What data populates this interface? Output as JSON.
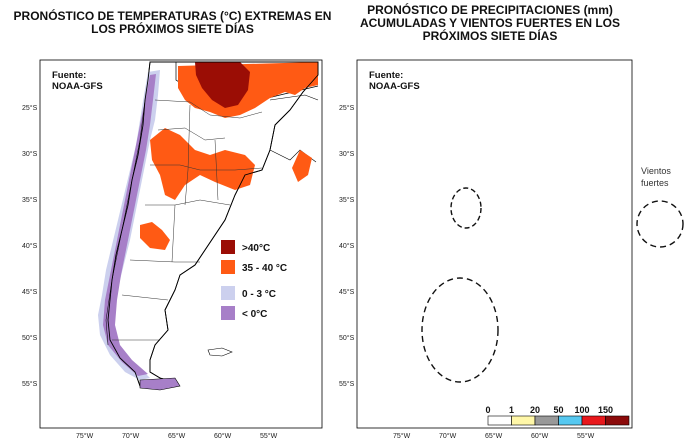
{
  "left_panel": {
    "title": "PRONÓSTICO DE TEMPERATURAS (°C) EXTREMAS EN\nLOS PRÓXIMOS SIETE DÍAS",
    "source": [
      "Fuente:",
      "NOAA-GFS"
    ],
    "legend": [
      {
        "label": ">40°C",
        "color": "#9b0d05"
      },
      {
        "label": "35 - 40 °C",
        "color": "#ff5a14"
      },
      {
        "label": "0 - 3 °C",
        "color": "#ccd0ee"
      },
      {
        "label": "< 0°C",
        "color": "#a77fc8"
      }
    ],
    "lat_ticks": [
      "25°S",
      "30°S",
      "35°S",
      "40°S",
      "45°S",
      "50°S",
      "55°S"
    ],
    "lon_ticks": [
      "75°W",
      "70°W",
      "65°W",
      "60°W",
      "55°W"
    ]
  },
  "right_panel": {
    "title": "PRONÓSTICO DE PRECIPITACIONES (mm)\nACUMULADAS Y VIENTOS FUERTES EN LOS\nPRÓXIMOS SIETE DÍAS",
    "source": [
      "Fuente:",
      "NOAA-GFS"
    ],
    "lat_ticks": [
      "25°S",
      "30°S",
      "35°S",
      "40°S",
      "45°S",
      "50°S",
      "55°S"
    ],
    "lon_ticks": [
      "75°W",
      "70°W",
      "65°W",
      "60°W",
      "55°W"
    ],
    "colorbar": {
      "labels": [
        "0",
        "1",
        "20",
        "50",
        "100",
        "150"
      ],
      "colors": [
        "#ffffff",
        "#fff7a8",
        "#999999",
        "#56c8f0",
        "#e8181c",
        "#8b0a0a"
      ]
    },
    "wind_legend": "Vientos\nfuertes"
  },
  "colors": {
    "land": "#ffffff",
    "border": "#000000",
    "precip_light": "#fff7a8",
    "precip_gray": "#999999",
    "precip_blue": "#56c8f0",
    "precip_red": "#e8181c"
  }
}
